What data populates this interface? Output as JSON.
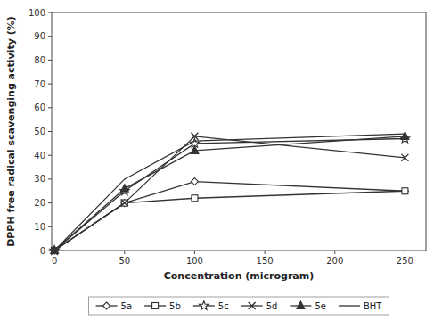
{
  "chart_data": {
    "type": "line",
    "xlabel": "Concentration (microgram)",
    "ylabel": "DPPH free radical scavenging activity (%)",
    "x": [
      0,
      50,
      100,
      250
    ],
    "color": "#333333",
    "series": [
      {
        "name": "5a",
        "marker": "diamond",
        "values": [
          0,
          20,
          29,
          25
        ]
      },
      {
        "name": "5b",
        "marker": "square",
        "values": [
          0,
          20,
          22,
          25
        ]
      },
      {
        "name": "5c",
        "marker": "star",
        "values": [
          0,
          25,
          45,
          47
        ]
      },
      {
        "name": "5d",
        "marker": "x",
        "values": [
          0,
          20,
          48,
          39
        ]
      },
      {
        "name": "5e",
        "marker": "triangle",
        "values": [
          0,
          26,
          42,
          48
        ]
      },
      {
        "name": "BHT",
        "marker": "none",
        "values": [
          0,
          30,
          46,
          49
        ]
      }
    ],
    "xlim": [
      -2,
      265
    ],
    "ylim": [
      0,
      100
    ],
    "xticks": [
      0,
      50,
      100,
      150,
      200,
      250
    ],
    "yticks": [
      0,
      10,
      20,
      30,
      40,
      50,
      60,
      70,
      80,
      90,
      100
    ],
    "grid": false,
    "legend": "bottom"
  }
}
